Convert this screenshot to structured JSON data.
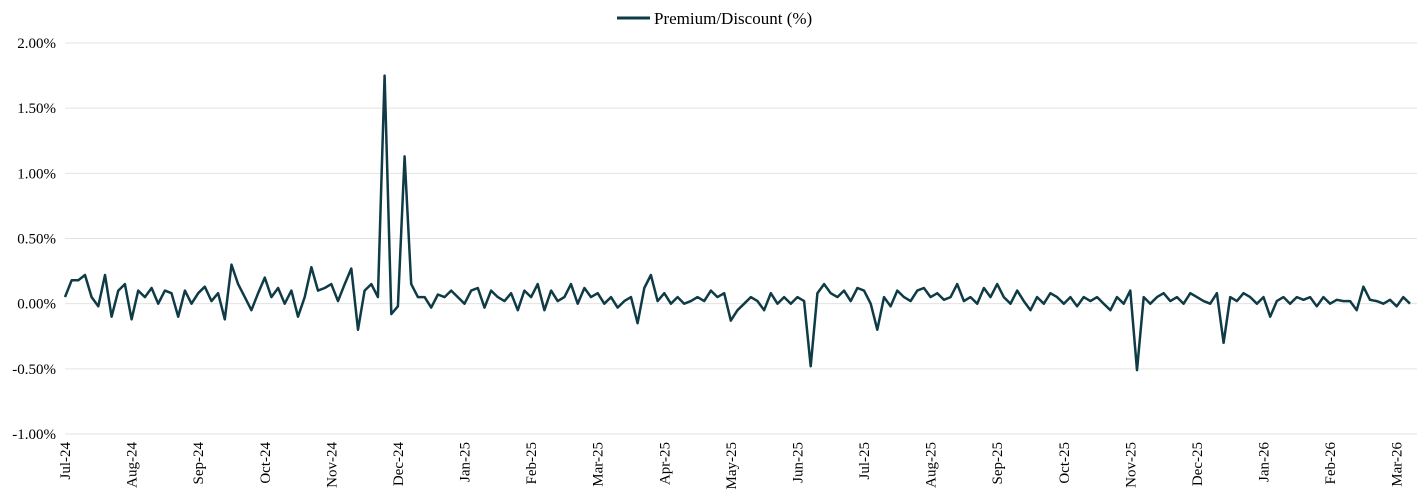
{
  "chart_data": {
    "type": "line",
    "categories": [
      "Jul-24",
      null,
      null,
      null,
      null,
      null,
      null,
      null,
      null,
      null,
      "Aug-24",
      null,
      null,
      null,
      null,
      null,
      null,
      null,
      null,
      null,
      "Sep-24",
      null,
      null,
      null,
      null,
      null,
      null,
      null,
      null,
      null,
      "Oct-24",
      null,
      null,
      null,
      null,
      null,
      null,
      null,
      null,
      null,
      "Nov-24",
      null,
      null,
      null,
      null,
      null,
      null,
      null,
      null,
      null,
      "Dec-24",
      null,
      null,
      null,
      null,
      null,
      null,
      null,
      null,
      null,
      "Jan-25",
      null,
      null,
      null,
      null,
      null,
      null,
      null,
      null,
      null,
      "Feb-25",
      null,
      null,
      null,
      null,
      null,
      null,
      null,
      null,
      null,
      "Mar-25",
      null,
      null,
      null,
      null,
      null,
      null,
      null,
      null,
      null,
      "Apr-25",
      null,
      null,
      null,
      null,
      null,
      null,
      null,
      null,
      null,
      "May-25",
      null,
      null,
      null,
      null,
      null,
      null,
      null,
      null,
      null,
      "Jun-25",
      null,
      null,
      null,
      null,
      null,
      null,
      null,
      null,
      null,
      "Jul-25",
      null,
      null,
      null,
      null,
      null,
      null,
      null,
      null,
      null,
      "Aug-25",
      null,
      null,
      null,
      null,
      null,
      null,
      null,
      null,
      null,
      "Sep-25",
      null,
      null,
      null,
      null,
      null,
      null,
      null,
      null,
      null,
      "Oct-25",
      null,
      null,
      null,
      null,
      null,
      null,
      null,
      null,
      null,
      "Nov-25",
      null,
      null,
      null,
      null,
      null,
      null,
      null,
      null,
      null,
      "Dec-25",
      null,
      null,
      null,
      null,
      null,
      null,
      null,
      null,
      null,
      "Jan-26",
      null,
      null,
      null,
      null,
      null,
      null,
      null,
      null,
      null,
      "Feb-26",
      null,
      null,
      null,
      null,
      null,
      null,
      null,
      null,
      null,
      "Mar-26",
      null,
      null
    ],
    "series": [
      {
        "name": "Premium/Discount (%)",
        "color": "#0e3b45",
        "values": [
          0.05,
          0.18,
          0.18,
          0.22,
          0.05,
          -0.02,
          0.22,
          -0.1,
          0.1,
          0.15,
          -0.12,
          0.1,
          0.05,
          0.12,
          0.0,
          0.1,
          0.08,
          -0.1,
          0.1,
          0.0,
          0.08,
          0.13,
          0.02,
          0.08,
          -0.12,
          0.3,
          0.15,
          0.05,
          -0.05,
          0.08,
          0.2,
          0.05,
          0.12,
          0.0,
          0.1,
          -0.1,
          0.05,
          0.28,
          0.1,
          0.12,
          0.15,
          0.02,
          0.15,
          0.27,
          -0.2,
          0.1,
          0.15,
          0.05,
          1.75,
          -0.08,
          -0.02,
          1.13,
          0.15,
          0.05,
          0.05,
          -0.03,
          0.07,
          0.05,
          0.1,
          0.05,
          0.0,
          0.1,
          0.12,
          -0.03,
          0.1,
          0.05,
          0.02,
          0.08,
          -0.05,
          0.1,
          0.05,
          0.15,
          -0.05,
          0.1,
          0.02,
          0.05,
          0.15,
          0.0,
          0.12,
          0.05,
          0.08,
          0.0,
          0.05,
          -0.03,
          0.02,
          0.05,
          -0.15,
          0.12,
          0.22,
          0.02,
          0.08,
          0.0,
          0.05,
          0.0,
          0.02,
          0.05,
          0.02,
          0.1,
          0.05,
          0.08,
          -0.13,
          -0.05,
          0.0,
          0.05,
          0.02,
          -0.05,
          0.08,
          0.0,
          0.05,
          0.0,
          0.05,
          0.02,
          -0.48,
          0.08,
          0.15,
          0.08,
          0.05,
          0.1,
          0.02,
          0.12,
          0.1,
          0.0,
          -0.2,
          0.05,
          -0.02,
          0.1,
          0.05,
          0.02,
          0.1,
          0.12,
          0.05,
          0.08,
          0.03,
          0.05,
          0.15,
          0.02,
          0.05,
          0.0,
          0.12,
          0.05,
          0.15,
          0.05,
          0.0,
          0.1,
          0.02,
          -0.05,
          0.05,
          0.0,
          0.08,
          0.05,
          0.0,
          0.05,
          -0.02,
          0.05,
          0.02,
          0.05,
          0.0,
          -0.05,
          0.05,
          0.0,
          0.1,
          -0.51,
          0.05,
          0.0,
          0.05,
          0.08,
          0.02,
          0.05,
          0.0,
          0.08,
          0.05,
          0.02,
          0.0,
          0.08,
          -0.3,
          0.05,
          0.02,
          0.08,
          0.05,
          0.0,
          0.05,
          -0.1,
          0.02,
          0.05,
          0.0,
          0.05,
          0.03,
          0.05,
          -0.02,
          0.05,
          0.0,
          0.03,
          0.02,
          0.02,
          -0.05,
          0.13,
          0.03,
          0.02,
          0.0,
          0.03,
          -0.02,
          0.05,
          0.0
        ]
      }
    ],
    "ylim": [
      -1,
      2
    ],
    "yticks": [
      {
        "value": -1,
        "label": "-1.00%"
      },
      {
        "value": -0.5,
        "label": "-0.50%"
      },
      {
        "value": 0,
        "label": "0.00%"
      },
      {
        "value": 0.5,
        "label": "0.50%"
      },
      {
        "value": 1,
        "label": "1.00%"
      },
      {
        "value": 1.5,
        "label": "1.50%"
      },
      {
        "value": 2,
        "label": "2.00%"
      }
    ],
    "grid": true,
    "legend": "top"
  }
}
